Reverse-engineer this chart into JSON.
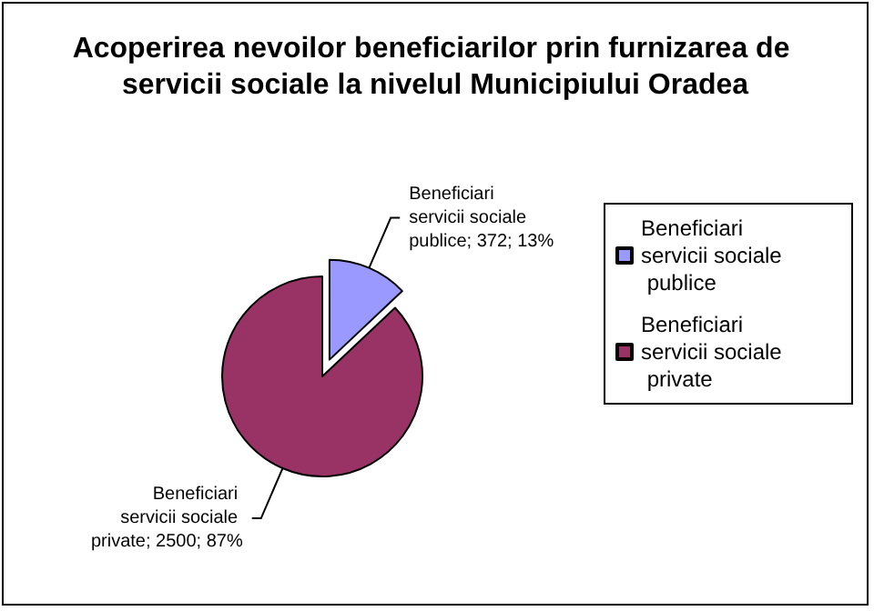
{
  "chart_data": {
    "type": "pie",
    "title": "Acoperirea nevoilor beneficiarilor prin furnizarea de servicii sociale la nivelul Municipiului Oradea",
    "categories": [
      "Beneficiari servicii sociale publice",
      "Beneficiari servicii sociale private"
    ],
    "values": [
      372,
      2500
    ],
    "colors": [
      "#9999ff",
      "#993366"
    ],
    "value_labels": [
      "Beneficiari servicii sociale publice; 372; 13%",
      "Beneficiari servicii sociale private; 2500; 87%"
    ],
    "legend": "right"
  }
}
